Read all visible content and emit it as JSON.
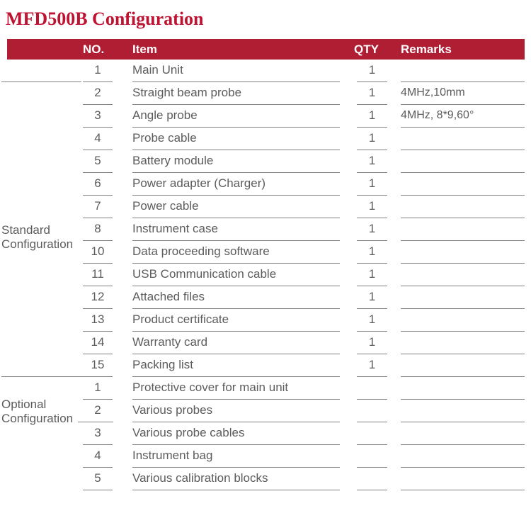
{
  "title": "MFD500B Configuration",
  "colors": {
    "title_text": "#BE1231",
    "header_bg": "#B01E33",
    "header_text": "#FFFFFF",
    "body_text": "#5C5C5C",
    "line": "#828282"
  },
  "table": {
    "headers": {
      "no": "NO.",
      "item": "Item",
      "qty": "QTY",
      "remarks": "Remarks"
    },
    "sections": [
      {
        "label": "Standard Configuration",
        "rows": [
          {
            "no": "1",
            "item": "Main Unit",
            "qty": "1",
            "remarks": ""
          },
          {
            "no": "2",
            "item": "Straight beam probe",
            "qty": "1",
            "remarks": "4MHz,10mm"
          },
          {
            "no": "3",
            "item": "Angle probe",
            "qty": "1",
            "remarks": "4MHz, 8*9,60°"
          },
          {
            "no": "4",
            "item": "Probe cable",
            "qty": "1",
            "remarks": ""
          },
          {
            "no": "5",
            "item": "Battery module",
            "qty": "1",
            "remarks": ""
          },
          {
            "no": "6",
            "item": "Power adapter (Charger)",
            "qty": "1",
            "remarks": ""
          },
          {
            "no": "7",
            "item": "Power cable",
            "qty": "1",
            "remarks": ""
          },
          {
            "no": "8",
            "item": "Instrument case",
            "qty": "1",
            "remarks": ""
          },
          {
            "no": "10",
            "item": "Data proceeding software",
            "qty": "1",
            "remarks": ""
          },
          {
            "no": "11",
            "item": "USB Communication cable",
            "qty": "1",
            "remarks": ""
          },
          {
            "no": "12",
            "item": "Attached files",
            "qty": "1",
            "remarks": ""
          },
          {
            "no": "13",
            "item": "Product certificate",
            "qty": "1",
            "remarks": ""
          },
          {
            "no": "14",
            "item": "Warranty card",
            "qty": "1",
            "remarks": ""
          },
          {
            "no": "15",
            "item": "Packing list",
            "qty": "1",
            "remarks": ""
          }
        ]
      },
      {
        "label": "Optional Configuration",
        "rows": [
          {
            "no": "1",
            "item": "Protective cover for main unit",
            "qty": "",
            "remarks": ""
          },
          {
            "no": "2",
            "item": "Various probes",
            "qty": "",
            "remarks": ""
          },
          {
            "no": "3",
            "item": "Various probe cables",
            "qty": "",
            "remarks": ""
          },
          {
            "no": "4",
            "item": "Instrument bag",
            "qty": "",
            "remarks": ""
          },
          {
            "no": "5",
            "item": "Various calibration blocks",
            "qty": "",
            "remarks": ""
          }
        ]
      }
    ]
  }
}
